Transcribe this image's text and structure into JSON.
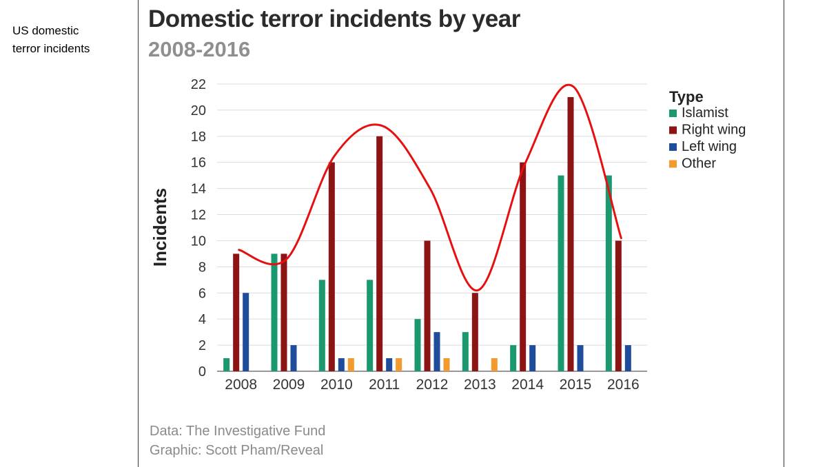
{
  "side_note": {
    "line1": "US domestic",
    "line2": "terror incidents"
  },
  "credits": {
    "data": "Data: The Investigative Fund",
    "graphic": "Graphic: Scott Pham/Reveal"
  },
  "chart_data": {
    "type": "bar",
    "title": "Domestic terror incidents by year",
    "subtitle": "2008-2016",
    "xlabel": "",
    "ylabel": "Incidents",
    "ylim": [
      0,
      22
    ],
    "yticks": [
      0,
      2,
      4,
      6,
      8,
      10,
      12,
      14,
      16,
      18,
      20,
      22
    ],
    "grid": true,
    "legend_title": "Type",
    "legend_position": "top-right",
    "categories": [
      "2008",
      "2009",
      "2010",
      "2011",
      "2012",
      "2013",
      "2014",
      "2015",
      "2016"
    ],
    "series": [
      {
        "name": "Islamist",
        "color": "#1a9870",
        "values": [
          1,
          9,
          7,
          7,
          4,
          3,
          2,
          15,
          15
        ]
      },
      {
        "name": "Right wing",
        "color": "#8c1414",
        "values": [
          9,
          9,
          16,
          18,
          10,
          6,
          16,
          21,
          10
        ]
      },
      {
        "name": "Left wing",
        "color": "#1f4d9b",
        "values": [
          6,
          2,
          1,
          1,
          3,
          0,
          2,
          2,
          2
        ]
      },
      {
        "name": "Other",
        "color": "#f29a2e",
        "values": [
          0,
          0,
          1,
          1,
          1,
          1,
          0,
          0,
          0
        ]
      }
    ],
    "annotation": {
      "type": "hand-drawn trend curve",
      "color": "#e61010",
      "values": [
        9.3,
        8.6,
        16.5,
        18.8,
        14.0,
        6.2,
        16.0,
        21.8,
        10.2
      ]
    }
  }
}
